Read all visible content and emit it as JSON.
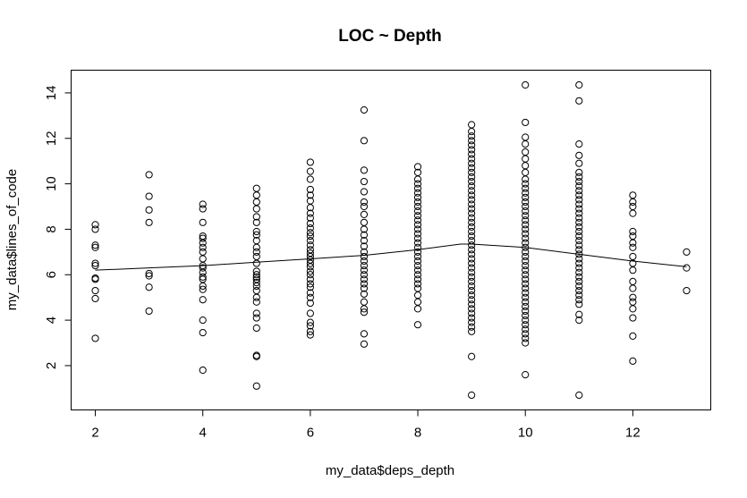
{
  "chart_data": {
    "type": "scatter",
    "title": "LOC ~ Depth",
    "xlabel": "my_data$deps_depth",
    "ylabel": "my_data$lines_of_code",
    "xlim": [
      1.55,
      13.45
    ],
    "ylim": [
      0.05,
      15.0
    ],
    "xticks": [
      2,
      4,
      6,
      8,
      10,
      12
    ],
    "yticks": [
      2,
      4,
      6,
      8,
      10,
      12,
      14
    ],
    "grid": false,
    "legend": "none",
    "points": {
      "2": [
        3.2,
        4.95,
        5.3,
        5.8,
        5.85,
        6.4,
        6.5,
        7.2,
        7.3,
        8.0,
        8.2
      ],
      "3": [
        4.4,
        5.45,
        5.95,
        6.05,
        8.3,
        8.85,
        9.45,
        10.4
      ],
      "4": [
        1.8,
        3.45,
        4.0,
        4.9,
        5.35,
        5.5,
        5.8,
        5.9,
        6.1,
        6.3,
        6.4,
        6.7,
        7.0,
        7.2,
        7.4,
        7.6,
        7.7,
        8.3,
        8.9,
        9.1
      ],
      "5": [
        1.1,
        2.4,
        2.45,
        3.65,
        4.1,
        4.3,
        4.8,
        5.0,
        5.3,
        5.5,
        5.65,
        5.8,
        5.9,
        6.0,
        6.15,
        6.5,
        6.8,
        7.0,
        7.2,
        7.5,
        7.75,
        7.9,
        8.3,
        8.55,
        8.9,
        9.2,
        9.5,
        9.8
      ],
      "6": [
        3.35,
        3.5,
        3.75,
        3.9,
        4.3,
        4.75,
        5.0,
        5.2,
        5.45,
        5.6,
        5.8,
        6.0,
        6.15,
        6.35,
        6.5,
        6.65,
        6.8,
        6.95,
        7.1,
        7.3,
        7.5,
        7.7,
        7.85,
        8.05,
        8.25,
        8.5,
        8.7,
        8.95,
        9.25,
        9.5,
        9.75,
        10.2,
        10.55,
        10.95
      ],
      "7": [
        2.95,
        3.4,
        4.35,
        4.5,
        4.8,
        5.15,
        5.4,
        5.6,
        5.8,
        6.0,
        6.2,
        6.4,
        6.6,
        6.8,
        7.0,
        7.25,
        7.5,
        7.75,
        8.0,
        8.3,
        8.65,
        9.0,
        9.2,
        9.65,
        10.1,
        10.6,
        11.9,
        13.25
      ],
      "8": [
        3.8,
        4.5,
        4.8,
        5.1,
        5.4,
        5.6,
        5.8,
        6.0,
        6.2,
        6.4,
        6.6,
        6.8,
        7.0,
        7.2,
        7.4,
        7.6,
        7.8,
        8.0,
        8.2,
        8.4,
        8.6,
        8.8,
        9.0,
        9.2,
        9.4,
        9.6,
        9.8,
        10.0,
        10.2,
        10.5,
        10.75
      ],
      "9": [
        0.7,
        2.4,
        3.5,
        3.7,
        3.9,
        4.1,
        4.3,
        4.5,
        4.7,
        4.9,
        5.1,
        5.3,
        5.5,
        5.7,
        5.9,
        6.1,
        6.3,
        6.5,
        6.7,
        6.9,
        7.1,
        7.3,
        7.5,
        7.7,
        7.9,
        8.1,
        8.3,
        8.5,
        8.7,
        8.9,
        9.1,
        9.3,
        9.5,
        9.7,
        9.9,
        10.1,
        10.3,
        10.5,
        10.7,
        10.9,
        11.1,
        11.3,
        11.5,
        11.7,
        11.9,
        12.1,
        12.3,
        12.6
      ],
      "10": [
        1.6,
        3.0,
        3.2,
        3.4,
        3.6,
        3.8,
        4.0,
        4.2,
        4.4,
        4.6,
        4.8,
        5.0,
        5.2,
        5.4,
        5.6,
        5.8,
        6.0,
        6.2,
        6.4,
        6.6,
        6.8,
        7.0,
        7.2,
        7.4,
        7.6,
        7.8,
        8.0,
        8.2,
        8.4,
        8.6,
        8.8,
        9.0,
        9.2,
        9.4,
        9.6,
        9.8,
        10.0,
        10.2,
        10.5,
        10.8,
        11.1,
        11.4,
        11.75,
        12.05,
        12.7,
        14.35
      ],
      "11": [
        0.7,
        4.0,
        4.25,
        4.7,
        4.9,
        5.1,
        5.3,
        5.5,
        5.7,
        5.9,
        6.1,
        6.3,
        6.5,
        6.7,
        6.9,
        7.1,
        7.3,
        7.5,
        7.7,
        7.9,
        8.1,
        8.3,
        8.5,
        8.7,
        8.9,
        9.1,
        9.3,
        9.5,
        9.7,
        9.9,
        10.1,
        10.3,
        10.5,
        10.9,
        11.25,
        11.75,
        13.65,
        14.35
      ],
      "12": [
        2.2,
        3.3,
        4.1,
        4.5,
        4.8,
        5.0,
        5.4,
        5.7,
        6.2,
        6.5,
        6.8,
        7.2,
        7.4,
        7.7,
        7.9,
        8.7,
        9.0,
        9.2,
        9.5
      ],
      "13": [
        5.3,
        6.3,
        7.0
      ]
    },
    "trend_line": {
      "x": [
        2,
        3,
        4,
        5,
        6,
        7,
        8,
        8.8,
        9,
        10,
        11,
        12,
        13
      ],
      "y": [
        6.2,
        6.3,
        6.4,
        6.55,
        6.7,
        6.85,
        7.1,
        7.35,
        7.35,
        7.2,
        6.9,
        6.6,
        6.35
      ]
    }
  }
}
